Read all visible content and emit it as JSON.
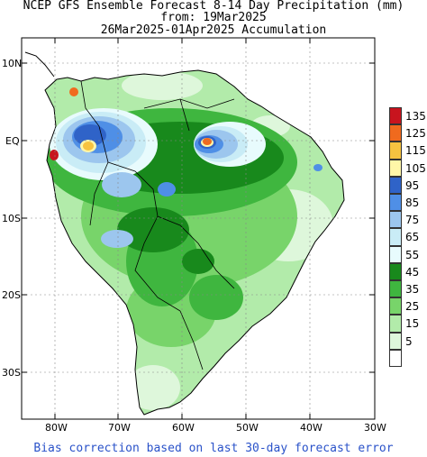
{
  "header": {
    "title": "NCEP GFS Ensemble Forecast 8-14 Day Precipitation (mm)",
    "from_line": "from: 19Mar2025",
    "period_line": "26Mar2025-01Apr2025 Accumulation"
  },
  "axes": {
    "lat_labels": [
      "10N",
      "EQ",
      "10S",
      "20S",
      "30S"
    ],
    "lon_labels": [
      "80W",
      "70W",
      "60W",
      "50W",
      "40W",
      "30W"
    ]
  },
  "legend": {
    "items": [
      {
        "label": "135",
        "color": "#c8141e"
      },
      {
        "label": "125",
        "color": "#f06a1e"
      },
      {
        "label": "115",
        "color": "#f6c340"
      },
      {
        "label": "105",
        "color": "#fff6a8"
      },
      {
        "label": "95",
        "color": "#2f63c8"
      },
      {
        "label": "85",
        "color": "#4f8fe6"
      },
      {
        "label": "75",
        "color": "#9cc6ee"
      },
      {
        "label": "65",
        "color": "#c9ecf6"
      },
      {
        "label": "55",
        "color": "#e8fbfd"
      },
      {
        "label": "45",
        "color": "#18891c"
      },
      {
        "label": "35",
        "color": "#3fb63f"
      },
      {
        "label": "25",
        "color": "#78d46a"
      },
      {
        "label": "15",
        "color": "#b2ebaa"
      },
      {
        "label": "5",
        "color": "#def7db"
      },
      {
        "label": "",
        "color": "#ffffff"
      }
    ]
  },
  "footnote": "Bias correction based on last 30-day forecast error"
}
